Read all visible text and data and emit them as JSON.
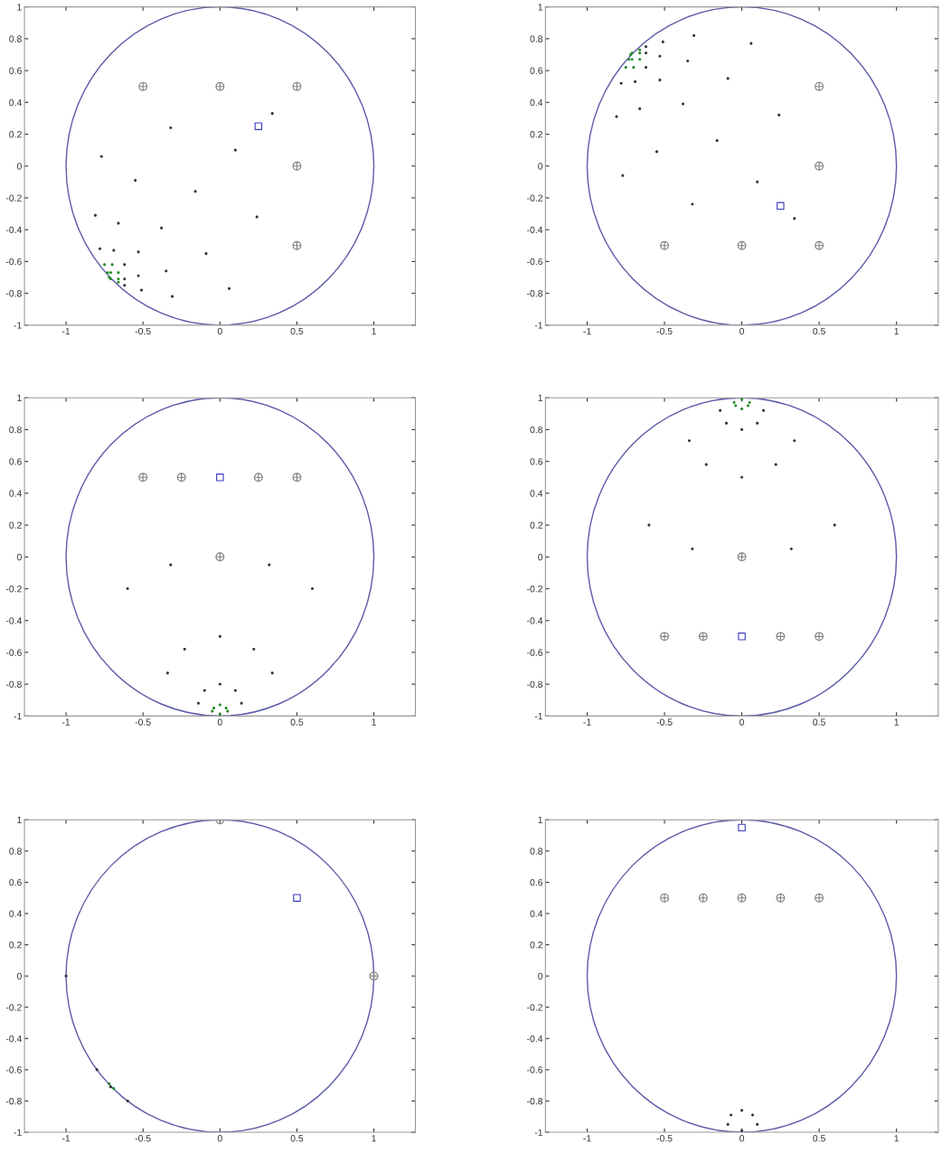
{
  "chart_data": [
    {
      "type": "scatter",
      "xlim": [
        -1.27,
        1.27
      ],
      "ylim": [
        -1,
        1
      ],
      "xticks": [
        -1,
        -0.5,
        0,
        0.5,
        1
      ],
      "yticks": [
        -1,
        -0.8,
        -0.6,
        -0.4,
        -0.2,
        0,
        0.2,
        0.4,
        0.6,
        0.8,
        1
      ],
      "grid": false,
      "series": [
        {
          "type": "scatter",
          "color": "#808080",
          "marker": "cross",
          "x": [
            -0.5,
            0,
            0.5,
            0.5,
            0.5
          ],
          "values": [
            0.5,
            0.5,
            0.5,
            0,
            -0.5
          ]
        },
        {
          "type": "scatter",
          "color": "#3a3ac0",
          "marker": "square",
          "x": [
            0.25
          ],
          "values": [
            0.25
          ]
        },
        {
          "type": "scatter",
          "color": "#333333",
          "marker": "circle",
          "x": [
            0.34,
            -0.32,
            0.1,
            -0.77,
            -0.55,
            -0.16,
            -0.81,
            -0.66,
            -0.38,
            0.24,
            -0.78,
            -0.69,
            -0.53,
            -0.09,
            -0.62,
            -0.35,
            -0.53,
            -0.62,
            -0.62,
            -0.51,
            -0.31,
            0.06
          ],
          "values": [
            0.33,
            0.24,
            0.1,
            0.06,
            -0.09,
            -0.16,
            -0.31,
            -0.36,
            -0.39,
            -0.32,
            -0.52,
            -0.53,
            -0.54,
            -0.55,
            -0.62,
            -0.66,
            -0.69,
            -0.71,
            -0.75,
            -0.78,
            -0.82,
            -0.77
          ]
        },
        {
          "type": "scatter",
          "color": "#228b22",
          "marker": "circle",
          "x": [
            -0.75,
            -0.7,
            -0.73,
            -0.71,
            -0.66,
            -0.66,
            -0.66,
            -0.71,
            -0.72
          ],
          "values": [
            -0.62,
            -0.62,
            -0.67,
            -0.67,
            -0.67,
            -0.71,
            -0.73,
            -0.71,
            -0.7
          ]
        }
      ]
    },
    {
      "type": "scatter",
      "xlim": [
        -1.27,
        1.27
      ],
      "ylim": [
        -1,
        1
      ],
      "xticks": [
        -1,
        -0.5,
        0,
        0.5,
        1
      ],
      "yticks": [
        -1,
        -0.8,
        -0.6,
        -0.4,
        -0.2,
        0,
        0.2,
        0.4,
        0.6,
        0.8,
        1
      ],
      "grid": false,
      "series": [
        {
          "type": "scatter",
          "color": "#808080",
          "marker": "cross",
          "x": [
            -0.5,
            0,
            0.5,
            0.5,
            0.5
          ],
          "values": [
            -0.5,
            -0.5,
            -0.5,
            0,
            0.5
          ]
        },
        {
          "type": "scatter",
          "color": "#3a3ac0",
          "marker": "square",
          "x": [
            0.25
          ],
          "values": [
            -0.25
          ]
        },
        {
          "type": "scatter",
          "color": "#333333",
          "marker": "circle",
          "x": [
            0.34,
            -0.32,
            0.1,
            -0.77,
            -0.55,
            -0.16,
            -0.81,
            -0.66,
            -0.38,
            0.24,
            -0.78,
            -0.69,
            -0.53,
            -0.09,
            -0.62,
            -0.35,
            -0.53,
            -0.62,
            -0.62,
            -0.51,
            -0.31,
            0.06
          ],
          "values": [
            -0.33,
            -0.24,
            -0.1,
            -0.06,
            0.09,
            0.16,
            0.31,
            0.36,
            0.39,
            0.32,
            0.52,
            0.53,
            0.54,
            0.55,
            0.62,
            0.66,
            0.69,
            0.71,
            0.75,
            0.78,
            0.82,
            0.77
          ]
        },
        {
          "type": "scatter",
          "color": "#228b22",
          "marker": "circle",
          "x": [
            -0.75,
            -0.7,
            -0.73,
            -0.71,
            -0.66,
            -0.66,
            -0.66,
            -0.71,
            -0.72
          ],
          "values": [
            0.62,
            0.62,
            0.67,
            0.67,
            0.67,
            0.71,
            0.73,
            0.71,
            0.7
          ]
        }
      ]
    },
    {
      "type": "scatter",
      "xlim": [
        -1.27,
        1.27
      ],
      "ylim": [
        -1,
        1
      ],
      "xticks": [
        -1,
        -0.5,
        0,
        0.5,
        1
      ],
      "yticks": [
        -1,
        -0.8,
        -0.6,
        -0.4,
        -0.2,
        0,
        0.2,
        0.4,
        0.6,
        0.8,
        1
      ],
      "grid": false,
      "series": [
        {
          "type": "scatter",
          "color": "#808080",
          "marker": "cross",
          "x": [
            -0.5,
            -0.25,
            0.25,
            0.5,
            0
          ],
          "values": [
            0.5,
            0.5,
            0.5,
            0.5,
            0
          ]
        },
        {
          "type": "scatter",
          "color": "#3a3ac0",
          "marker": "square",
          "x": [
            0
          ],
          "values": [
            0.5
          ]
        },
        {
          "type": "scatter",
          "color": "#333333",
          "marker": "circle",
          "x": [
            -0.32,
            0.32,
            -0.6,
            0.6,
            0,
            -0.23,
            0.22,
            -0.34,
            0.34,
            0,
            -0.1,
            0.1,
            -0.14,
            0.14
          ],
          "values": [
            -0.05,
            -0.05,
            -0.2,
            -0.2,
            -0.5,
            -0.58,
            -0.58,
            -0.73,
            -0.73,
            -0.8,
            -0.84,
            -0.84,
            -0.92,
            -0.92
          ]
        },
        {
          "type": "scatter",
          "color": "#228b22",
          "marker": "circle",
          "x": [
            0,
            -0.04,
            0.04,
            -0.05,
            0.05,
            0
          ],
          "values": [
            -0.93,
            -0.95,
            -0.95,
            -0.97,
            -0.97,
            -0.99
          ]
        }
      ]
    },
    {
      "type": "scatter",
      "xlim": [
        -1.27,
        1.27
      ],
      "ylim": [
        -1,
        1
      ],
      "xticks": [
        -1,
        -0.5,
        0,
        0.5,
        1
      ],
      "yticks": [
        -1,
        -0.8,
        -0.6,
        -0.4,
        -0.2,
        0,
        0.2,
        0.4,
        0.6,
        0.8,
        1
      ],
      "grid": false,
      "series": [
        {
          "type": "scatter",
          "color": "#808080",
          "marker": "cross",
          "x": [
            -0.5,
            -0.25,
            0.25,
            0.5,
            0
          ],
          "values": [
            -0.5,
            -0.5,
            -0.5,
            -0.5,
            0
          ]
        },
        {
          "type": "scatter",
          "color": "#3a3ac0",
          "marker": "square",
          "x": [
            0
          ],
          "values": [
            -0.5
          ]
        },
        {
          "type": "scatter",
          "color": "#333333",
          "marker": "circle",
          "x": [
            -0.32,
            0.32,
            -0.6,
            0.6,
            0,
            -0.23,
            0.22,
            -0.34,
            0.34,
            0,
            -0.1,
            0.1,
            -0.14,
            0.14
          ],
          "values": [
            0.05,
            0.05,
            0.2,
            0.2,
            0.5,
            0.58,
            0.58,
            0.73,
            0.73,
            0.8,
            0.84,
            0.84,
            0.92,
            0.92
          ]
        },
        {
          "type": "scatter",
          "color": "#228b22",
          "marker": "circle",
          "x": [
            0,
            -0.04,
            0.04,
            -0.05,
            0.05,
            0
          ],
          "values": [
            0.93,
            0.95,
            0.95,
            0.97,
            0.97,
            0.99
          ]
        }
      ]
    },
    {
      "type": "scatter",
      "xlim": [
        -1.27,
        1.27
      ],
      "ylim": [
        -1,
        1
      ],
      "xticks": [
        -1,
        -0.5,
        0,
        0.5,
        1
      ],
      "yticks": [
        -1,
        -0.8,
        -0.6,
        -0.4,
        -0.2,
        0,
        0.2,
        0.4,
        0.6,
        0.8,
        1
      ],
      "grid": false,
      "series": [
        {
          "type": "scatter",
          "color": "#808080",
          "marker": "cross",
          "x": [
            0,
            1
          ],
          "values": [
            1,
            0
          ]
        },
        {
          "type": "scatter",
          "color": "#3a3ac0",
          "marker": "square",
          "x": [
            0.5
          ],
          "values": [
            0.5
          ]
        },
        {
          "type": "scatter",
          "color": "#333333",
          "marker": "circle",
          "x": [
            -1,
            -0.8,
            -0.71,
            -0.6
          ],
          "values": [
            0,
            -0.6,
            -0.71,
            -0.8
          ]
        },
        {
          "type": "scatter",
          "color": "#228b22",
          "marker": "circle",
          "x": [
            -0.72,
            -0.69
          ],
          "values": [
            -0.69,
            -0.72
          ]
        }
      ]
    },
    {
      "type": "scatter",
      "xlim": [
        -1.27,
        1.27
      ],
      "ylim": [
        -1,
        1
      ],
      "xticks": [
        -1,
        -0.5,
        0,
        0.5,
        1
      ],
      "yticks": [
        -1,
        -0.8,
        -0.6,
        -0.4,
        -0.2,
        0,
        0.2,
        0.4,
        0.6,
        0.8,
        1
      ],
      "grid": false,
      "series": [
        {
          "type": "scatter",
          "color": "#808080",
          "marker": "cross",
          "x": [
            -0.5,
            -0.25,
            0,
            0.25,
            0.5
          ],
          "values": [
            0.5,
            0.5,
            0.5,
            0.5,
            0.5
          ]
        },
        {
          "type": "scatter",
          "color": "#3a3ac0",
          "marker": "square",
          "x": [
            0
          ],
          "values": [
            0.95
          ]
        },
        {
          "type": "scatter",
          "color": "#333333",
          "marker": "circle",
          "x": [
            0,
            -0.07,
            0.07,
            -0.09,
            0.1,
            0
          ],
          "values": [
            -0.86,
            -0.89,
            -0.89,
            -0.95,
            -0.95,
            -0.99
          ]
        }
      ]
    }
  ]
}
